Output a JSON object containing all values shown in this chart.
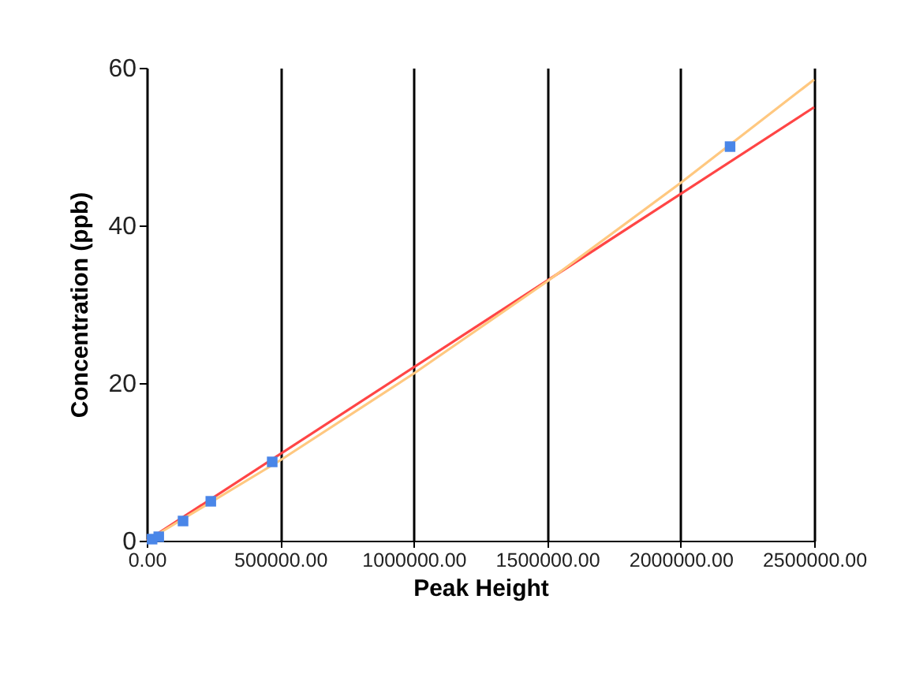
{
  "chart_data": {
    "type": "scatter",
    "xlabel": "Peak Height",
    "ylabel": "Concentration (ppb)",
    "xlim": [
      0,
      2500000
    ],
    "ylim": [
      0,
      60
    ],
    "xticks": [
      {
        "value": 0,
        "label": "0.00"
      },
      {
        "value": 500000,
        "label": "500000.00"
      },
      {
        "value": 1000000,
        "label": "1000000.00"
      },
      {
        "value": 1500000,
        "label": "1500000.00"
      },
      {
        "value": 2000000,
        "label": "2000000.00"
      },
      {
        "value": 2500000,
        "label": "2500000.00"
      }
    ],
    "yticks": [
      0,
      20,
      40,
      60
    ],
    "grid": "x",
    "series": [
      {
        "type": "line",
        "color": "#ff4545",
        "marker": "none",
        "x": [
          0,
          2500000
        ],
        "values": [
          0,
          55
        ]
      },
      {
        "type": "line",
        "color": "#ffc880",
        "marker": "none",
        "x": [
          0,
          500000,
          1000000,
          1500000,
          2000000,
          2500000
        ],
        "values": [
          0,
          10.2,
          21.2,
          32.9,
          45.4,
          58.5
        ]
      },
      {
        "color": "#4a86e8",
        "marker": "square",
        "x": [
          20000,
          45000,
          136000,
          240000,
          470000,
          2185000
        ],
        "values": [
          0.2,
          0.5,
          2.5,
          5,
          10,
          50
        ]
      }
    ]
  }
}
